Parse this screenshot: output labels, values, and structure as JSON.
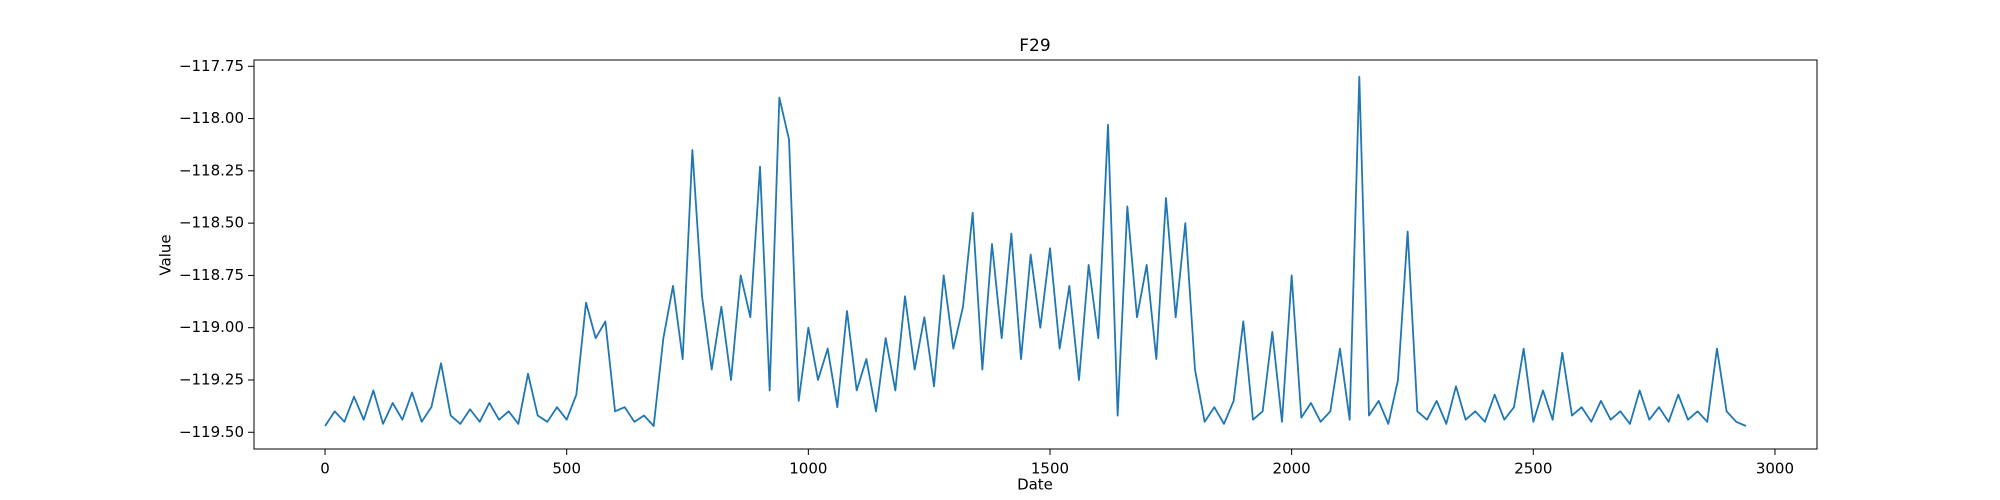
{
  "chart_data": {
    "type": "line",
    "title": "F29",
    "x_label": "Date",
    "y_label": "Value",
    "color": "#1f77b4",
    "grid": false,
    "xlim": [
      -147,
      3087
    ],
    "ylim": [
      -119.58,
      -117.72
    ],
    "xticks": [
      0,
      500,
      1000,
      1500,
      2000,
      2500,
      3000
    ],
    "yticks": [
      {
        "value": -119.5,
        "label": "−119.50"
      },
      {
        "value": -119.25,
        "label": "−119.25"
      },
      {
        "value": -119.0,
        "label": "−119.00"
      },
      {
        "value": -118.75,
        "label": "−118.75"
      },
      {
        "value": -118.5,
        "label": "−118.50"
      },
      {
        "value": -118.25,
        "label": "−118.25"
      },
      {
        "value": -118.0,
        "label": "−118.00"
      },
      {
        "value": -117.75,
        "label": "−117.75"
      }
    ],
    "x": [
      0,
      20,
      40,
      60,
      80,
      100,
      120,
      140,
      160,
      180,
      200,
      220,
      240,
      260,
      280,
      300,
      320,
      340,
      360,
      380,
      400,
      420,
      440,
      460,
      480,
      500,
      520,
      540,
      560,
      580,
      600,
      620,
      640,
      660,
      680,
      700,
      720,
      740,
      760,
      780,
      800,
      820,
      840,
      860,
      880,
      900,
      920,
      940,
      960,
      980,
      1000,
      1020,
      1040,
      1060,
      1080,
      1100,
      1120,
      1140,
      1160,
      1180,
      1200,
      1220,
      1240,
      1260,
      1280,
      1300,
      1320,
      1340,
      1360,
      1380,
      1400,
      1420,
      1440,
      1460,
      1480,
      1500,
      1520,
      1540,
      1560,
      1580,
      1600,
      1620,
      1640,
      1660,
      1680,
      1700,
      1720,
      1740,
      1760,
      1780,
      1800,
      1820,
      1840,
      1860,
      1880,
      1900,
      1920,
      1940,
      1960,
      1980,
      2000,
      2020,
      2040,
      2060,
      2080,
      2100,
      2120,
      2140,
      2160,
      2180,
      2200,
      2220,
      2240,
      2260,
      2280,
      2300,
      2320,
      2340,
      2360,
      2380,
      2400,
      2420,
      2440,
      2460,
      2480,
      2500,
      2520,
      2540,
      2560,
      2580,
      2600,
      2620,
      2640,
      2660,
      2680,
      2700,
      2720,
      2740,
      2760,
      2780,
      2800,
      2820,
      2840,
      2860,
      2880,
      2900,
      2920,
      2940
    ],
    "values": [
      -119.47,
      -119.4,
      -119.45,
      -119.33,
      -119.44,
      -119.3,
      -119.46,
      -119.36,
      -119.44,
      -119.31,
      -119.45,
      -119.38,
      -119.17,
      -119.42,
      -119.46,
      -119.39,
      -119.45,
      -119.36,
      -119.44,
      -119.4,
      -119.46,
      -119.22,
      -119.42,
      -119.45,
      -119.38,
      -119.44,
      -119.32,
      -118.88,
      -119.05,
      -118.97,
      -119.4,
      -119.38,
      -119.45,
      -119.42,
      -119.47,
      -119.05,
      -118.8,
      -119.15,
      -118.15,
      -118.85,
      -119.2,
      -118.9,
      -119.25,
      -118.75,
      -118.95,
      -118.23,
      -119.3,
      -117.9,
      -118.1,
      -119.35,
      -119.0,
      -119.25,
      -119.1,
      -119.38,
      -118.92,
      -119.3,
      -119.15,
      -119.4,
      -119.05,
      -119.3,
      -118.85,
      -119.2,
      -118.95,
      -119.28,
      -118.75,
      -119.1,
      -118.9,
      -118.45,
      -119.2,
      -118.6,
      -119.05,
      -118.55,
      -119.15,
      -118.65,
      -119.0,
      -118.62,
      -119.1,
      -118.8,
      -119.25,
      -118.7,
      -119.05,
      -118.03,
      -119.42,
      -118.42,
      -118.95,
      -118.7,
      -119.15,
      -118.38,
      -118.95,
      -118.5,
      -119.2,
      -119.45,
      -119.38,
      -119.46,
      -119.35,
      -118.97,
      -119.44,
      -119.4,
      -119.02,
      -119.45,
      -118.75,
      -119.43,
      -119.36,
      -119.45,
      -119.4,
      -119.1,
      -119.44,
      -117.8,
      -119.42,
      -119.35,
      -119.46,
      -119.25,
      -118.54,
      -119.4,
      -119.44,
      -119.35,
      -119.46,
      -119.28,
      -119.44,
      -119.4,
      -119.45,
      -119.32,
      -119.44,
      -119.38,
      -119.1,
      -119.45,
      -119.3,
      -119.44,
      -119.12,
      -119.42,
      -119.38,
      -119.45,
      -119.35,
      -119.44,
      -119.4,
      -119.46,
      -119.3,
      -119.44,
      -119.38,
      -119.45,
      -119.32,
      -119.44,
      -119.4,
      -119.45,
      -119.1,
      -119.4,
      -119.45,
      -119.47
    ]
  }
}
